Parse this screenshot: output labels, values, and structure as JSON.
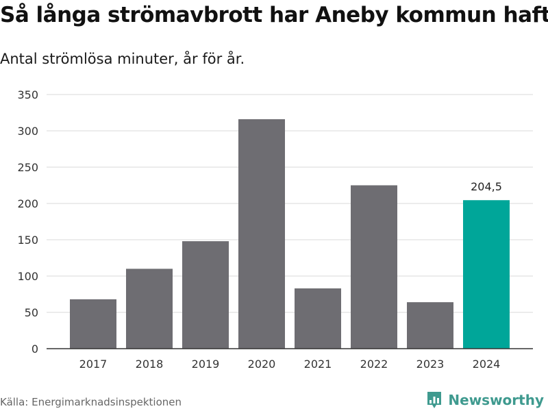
{
  "header": {
    "title": "Så långa strömavbrott har Aneby kommun haft",
    "subtitle": "Antal strömlösa minuter, år för år."
  },
  "footer": {
    "source": "Källa: Energimarknadsinspektionen",
    "brand": "Newsworthy"
  },
  "colors": {
    "bar": "#6e6d72",
    "highlight": "#00a699",
    "grid": "#d9d9d9",
    "axis": "#333333",
    "brand": "#3f9a8f"
  },
  "icons": {
    "brand_logo": "newsworthy-logo-icon"
  },
  "chart_data": {
    "type": "bar",
    "title": "Så långa strömavbrott har Aneby kommun haft",
    "subtitle": "Antal strömlösa minuter, år för år.",
    "xlabel": "",
    "ylabel": "",
    "categories": [
      "2017",
      "2018",
      "2019",
      "2020",
      "2021",
      "2022",
      "2023",
      "2024"
    ],
    "values": [
      68,
      110,
      148,
      316,
      83,
      225,
      64,
      204.5
    ],
    "highlight_index": 7,
    "ylim": [
      0,
      350
    ],
    "yticks": [
      0,
      50,
      100,
      150,
      200,
      250,
      300,
      350
    ],
    "grid": true,
    "data_labels": [
      {
        "category": "2024",
        "text": "204,5"
      }
    ]
  }
}
